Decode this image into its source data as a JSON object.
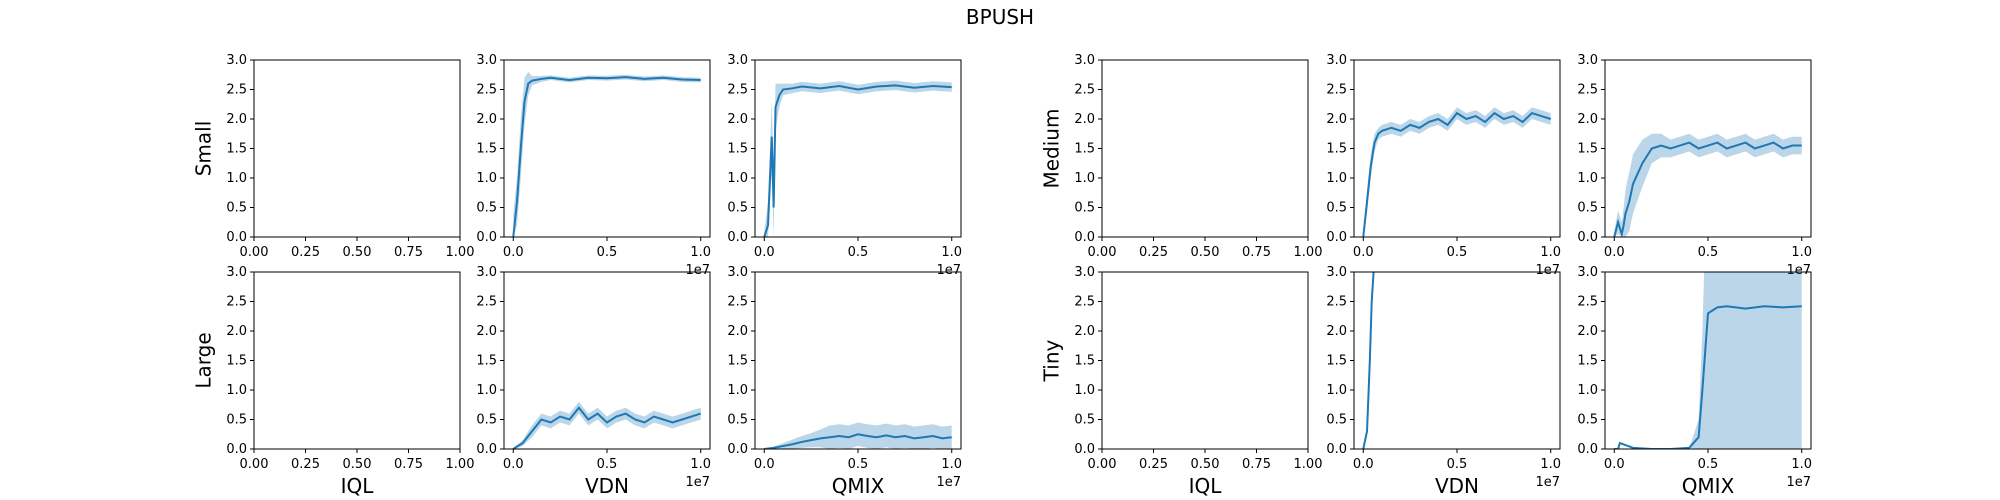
{
  "figure": {
    "title": "BPUSH",
    "column_labels": [
      "IQL",
      "VDN",
      "QMIX"
    ]
  },
  "chart_data": {
    "type": "line",
    "title": "BPUSH",
    "color": "#1f77b4",
    "y_ticks": [
      "0.0",
      "0.5",
      "1.0",
      "1.5",
      "2.0",
      "2.5",
      "3.0"
    ],
    "ylim": [
      0,
      3
    ],
    "x_ticks_empty": [
      "0.00",
      "0.25",
      "0.50",
      "0.75",
      "1.00"
    ],
    "x_ticks_data": [
      "0.0",
      "0.5",
      "1.0"
    ],
    "x_exponent": "1e7",
    "groups": [
      {
        "row_labels": [
          "Small",
          "Large"
        ],
        "panels": [
          [
            {
              "algo": "IQL",
              "empty": true
            },
            {
              "algo": "VDN",
              "empty": false,
              "x": [
                0,
                0.02,
                0.04,
                0.06,
                0.08,
                0.1,
                0.15,
                0.2,
                0.3,
                0.4,
                0.5,
                0.6,
                0.7,
                0.8,
                0.9,
                1.0
              ],
              "y": [
                0,
                0.6,
                1.5,
                2.3,
                2.6,
                2.65,
                2.68,
                2.7,
                2.66,
                2.7,
                2.69,
                2.71,
                2.68,
                2.7,
                2.67,
                2.66
              ],
              "band": [
                0.4,
                0.4,
                0.5,
                0.4,
                0.2,
                0.08,
                0.05,
                0.04,
                0.04,
                0.04,
                0.04,
                0.04,
                0.04,
                0.04,
                0.04,
                0.04
              ]
            },
            {
              "algo": "QMIX",
              "empty": false,
              "x": [
                0,
                0.02,
                0.04,
                0.05,
                0.06,
                0.08,
                0.1,
                0.15,
                0.2,
                0.3,
                0.4,
                0.5,
                0.6,
                0.7,
                0.8,
                0.9,
                1.0
              ],
              "y": [
                0,
                0.2,
                1.7,
                0.5,
                2.2,
                2.4,
                2.5,
                2.52,
                2.55,
                2.52,
                2.56,
                2.5,
                2.55,
                2.57,
                2.53,
                2.56,
                2.54
              ],
              "band": [
                0.1,
                0.4,
                0.6,
                0.6,
                0.4,
                0.2,
                0.1,
                0.08,
                0.08,
                0.08,
                0.08,
                0.08,
                0.08,
                0.08,
                0.08,
                0.08,
                0.08
              ]
            }
          ],
          [
            {
              "algo": "IQL",
              "empty": true
            },
            {
              "algo": "VDN",
              "empty": false,
              "x": [
                0,
                0.05,
                0.1,
                0.15,
                0.2,
                0.25,
                0.3,
                0.35,
                0.4,
                0.45,
                0.5,
                0.55,
                0.6,
                0.65,
                0.7,
                0.75,
                0.8,
                0.85,
                0.9,
                0.95,
                1.0
              ],
              "y": [
                0,
                0.1,
                0.3,
                0.5,
                0.45,
                0.55,
                0.5,
                0.7,
                0.5,
                0.6,
                0.45,
                0.55,
                0.6,
                0.5,
                0.45,
                0.55,
                0.5,
                0.45,
                0.5,
                0.55,
                0.6
              ],
              "band": [
                0.02,
                0.05,
                0.1,
                0.1,
                0.1,
                0.1,
                0.1,
                0.1,
                0.1,
                0.1,
                0.1,
                0.1,
                0.1,
                0.1,
                0.1,
                0.1,
                0.1,
                0.1,
                0.1,
                0.1,
                0.1
              ]
            },
            {
              "algo": "QMIX",
              "empty": false,
              "x": [
                0,
                0.05,
                0.1,
                0.15,
                0.2,
                0.25,
                0.3,
                0.35,
                0.4,
                0.45,
                0.5,
                0.55,
                0.6,
                0.65,
                0.7,
                0.75,
                0.8,
                0.85,
                0.9,
                0.95,
                1.0
              ],
              "y": [
                0,
                0.02,
                0.05,
                0.08,
                0.12,
                0.15,
                0.18,
                0.2,
                0.22,
                0.2,
                0.25,
                0.22,
                0.2,
                0.23,
                0.2,
                0.22,
                0.18,
                0.2,
                0.22,
                0.18,
                0.2
              ],
              "band": [
                0.01,
                0.02,
                0.05,
                0.08,
                0.1,
                0.12,
                0.15,
                0.2,
                0.2,
                0.2,
                0.2,
                0.2,
                0.2,
                0.2,
                0.2,
                0.2,
                0.2,
                0.2,
                0.2,
                0.2,
                0.2
              ]
            }
          ]
        ]
      },
      {
        "row_labels": [
          "Medium",
          "Tiny"
        ],
        "panels": [
          [
            {
              "algo": "IQL",
              "empty": true
            },
            {
              "algo": "VDN",
              "empty": false,
              "x": [
                0,
                0.02,
                0.04,
                0.06,
                0.08,
                0.1,
                0.15,
                0.2,
                0.25,
                0.3,
                0.35,
                0.4,
                0.45,
                0.5,
                0.55,
                0.6,
                0.65,
                0.7,
                0.75,
                0.8,
                0.85,
                0.9,
                0.95,
                1.0
              ],
              "y": [
                0,
                0.6,
                1.2,
                1.6,
                1.75,
                1.8,
                1.85,
                1.8,
                1.9,
                1.85,
                1.95,
                2.0,
                1.9,
                2.1,
                2.0,
                2.05,
                1.95,
                2.1,
                2.0,
                2.05,
                1.95,
                2.1,
                2.05,
                2.0
              ],
              "band": [
                0.1,
                0.2,
                0.2,
                0.15,
                0.1,
                0.1,
                0.1,
                0.1,
                0.1,
                0.1,
                0.1,
                0.1,
                0.1,
                0.1,
                0.1,
                0.1,
                0.1,
                0.1,
                0.1,
                0.1,
                0.1,
                0.1,
                0.1,
                0.1
              ]
            },
            {
              "algo": "QMIX",
              "empty": false,
              "x": [
                0,
                0.02,
                0.04,
                0.05,
                0.06,
                0.08,
                0.1,
                0.15,
                0.2,
                0.25,
                0.3,
                0.35,
                0.4,
                0.45,
                0.5,
                0.55,
                0.6,
                0.65,
                0.7,
                0.75,
                0.8,
                0.85,
                0.9,
                0.95,
                1.0
              ],
              "y": [
                0,
                0.25,
                0.05,
                0.2,
                0.4,
                0.6,
                0.9,
                1.25,
                1.5,
                1.55,
                1.5,
                1.55,
                1.6,
                1.5,
                1.55,
                1.6,
                1.5,
                1.55,
                1.6,
                1.5,
                1.55,
                1.6,
                1.5,
                1.55,
                1.55
              ],
              "band": [
                0.1,
                0.2,
                0.2,
                0.3,
                0.4,
                0.5,
                0.5,
                0.4,
                0.25,
                0.2,
                0.15,
                0.15,
                0.15,
                0.15,
                0.15,
                0.15,
                0.15,
                0.15,
                0.15,
                0.15,
                0.15,
                0.15,
                0.15,
                0.15,
                0.15
              ]
            }
          ],
          [
            {
              "algo": "IQL",
              "empty": true
            },
            {
              "algo": "VDN",
              "empty": false,
              "x": [
                0,
                0.02,
                0.035,
                0.045,
                0.055
              ],
              "y": [
                0,
                0.3,
                1.5,
                2.5,
                3.0
              ],
              "band": [
                0,
                0,
                0,
                0,
                0
              ]
            },
            {
              "algo": "QMIX",
              "empty": false,
              "x": [
                0,
                0.02,
                0.03,
                0.1,
                0.2,
                0.3,
                0.4,
                0.45,
                0.47,
                0.5,
                0.55,
                0.6,
                0.7,
                0.8,
                0.9,
                1.0
              ],
              "y": [
                0,
                0,
                0.1,
                0.02,
                0,
                0,
                0.02,
                0.2,
                1.0,
                2.3,
                2.4,
                2.42,
                2.38,
                2.42,
                2.4,
                2.42
              ],
              "band": [
                0,
                0,
                0,
                0,
                0,
                0,
                0,
                0.3,
                1.0,
                3.0,
                3.0,
                3.0,
                3.0,
                3.0,
                3.0,
                3.0
              ]
            }
          ]
        ]
      }
    ]
  }
}
